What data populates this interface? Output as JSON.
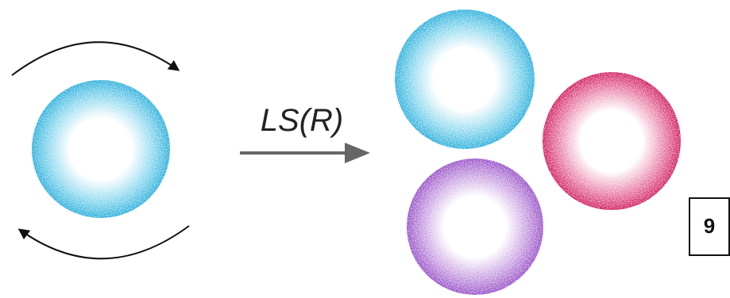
{
  "label": "LS(R)",
  "badge": "9"
}
